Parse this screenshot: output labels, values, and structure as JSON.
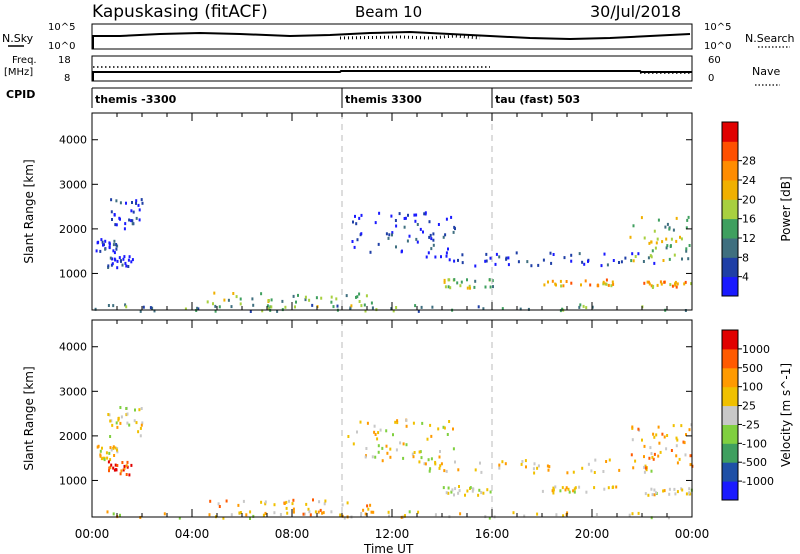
{
  "header": {
    "site": "Kapuskasing (fitACF)",
    "beam": "Beam 10",
    "date": "30/Jul/2018"
  },
  "strip_noise": {
    "left_label": "N.Sky",
    "right_label": "N.Search",
    "left_ticks": [
      "10^5",
      "10^0"
    ],
    "right_ticks": [
      "10^5",
      "10^0"
    ]
  },
  "strip_freq": {
    "left_label": "Freq.",
    "left_unit": "[MHz]",
    "right_label": "Nave",
    "left_ticks": [
      "18",
      "8"
    ],
    "right_ticks": [
      "60",
      "0"
    ]
  },
  "cpid": {
    "label": "CPID",
    "segments": [
      {
        "name": "themis -3300",
        "start": 0,
        "end": 10
      },
      {
        "name": "themis 3300",
        "start": 10,
        "end": 16
      },
      {
        "name": "tau (fast) 503",
        "start": 16,
        "end": 24
      }
    ]
  },
  "colors": {
    "power": [
      "#1a1aff",
      "#1f3fa6",
      "#3f6f7f",
      "#3f9f5f",
      "#a8d040",
      "#f0b000",
      "#ff8c00",
      "#ff5000",
      "#e00000"
    ],
    "velocity": [
      "#e00000",
      "#ff5a00",
      "#ff9a00",
      "#f0c000",
      "#c8c8c8",
      "#80d040",
      "#3f9f5f",
      "#1f50a6",
      "#1a1aff"
    ]
  },
  "chart_data": [
    {
      "type": "heatmap",
      "name": "power",
      "ylabel": "Slant Range [km]",
      "xlabel": "",
      "x_ticks": [
        "00:00",
        "04:00",
        "08:00",
        "12:00",
        "16:00",
        "20:00",
        "00:00"
      ],
      "x_range_hours": [
        0,
        24
      ],
      "y_ticks": [
        1000,
        2000,
        3000,
        4000
      ],
      "ylim": [
        180,
        4600
      ],
      "colorbar": {
        "label": "Power [dB]",
        "ticks": [
          "4",
          "8",
          "12",
          "16",
          "20",
          "24",
          "28"
        ],
        "range": [
          0,
          30
        ]
      },
      "boundaries_hours": [
        10,
        16
      ],
      "regions": [
        {
          "t": [
            0.1,
            1.0
          ],
          "r": [
            1500,
            1800
          ],
          "level": 1
        },
        {
          "t": [
            0.6,
            2.0
          ],
          "r": [
            2000,
            2700
          ],
          "level": 1
        },
        {
          "t": [
            0.6,
            1.6
          ],
          "r": [
            1150,
            1450
          ],
          "level": 1
        },
        {
          "t": [
            0.0,
            24.0
          ],
          "r": [
            180,
            330
          ],
          "level": 3
        },
        {
          "t": [
            4.5,
            11.5
          ],
          "r": [
            250,
            600
          ],
          "level": 4
        },
        {
          "t": [
            10.2,
            14.5
          ],
          "r": [
            1400,
            2400
          ],
          "level": 1
        },
        {
          "t": [
            13.0,
            22.5
          ],
          "r": [
            1200,
            1500
          ],
          "level": 1
        },
        {
          "t": [
            14.0,
            16.0
          ],
          "r": [
            700,
            900
          ],
          "level": 4
        },
        {
          "t": [
            17.8,
            21.0
          ],
          "r": [
            750,
            900
          ],
          "level": 6
        },
        {
          "t": [
            22.0,
            24.0
          ],
          "r": [
            700,
            850
          ],
          "level": 6
        },
        {
          "t": [
            21.5,
            24.0
          ],
          "r": [
            1300,
            2300
          ],
          "level": 4
        }
      ]
    },
    {
      "type": "heatmap",
      "name": "velocity",
      "ylabel": "Slant Range [km]",
      "xlabel": "Time UT",
      "x_ticks": [
        "00:00",
        "04:00",
        "08:00",
        "12:00",
        "16:00",
        "20:00",
        "00:00"
      ],
      "x_range_hours": [
        0,
        24
      ],
      "y_ticks": [
        1000,
        2000,
        3000,
        4000
      ],
      "ylim": [
        180,
        4600
      ],
      "colorbar": {
        "label": "Velocity [m s^-1]",
        "ticks": [
          "1000",
          "500",
          "100",
          "25",
          "-25",
          "-100",
          "-500",
          "-1000"
        ]
      },
      "boundaries_hours": [
        10,
        16
      ],
      "regions": [
        {
          "t": [
            0.1,
            1.0
          ],
          "r": [
            1500,
            1800
          ],
          "level": 4
        },
        {
          "t": [
            0.6,
            2.0
          ],
          "r": [
            2000,
            2700
          ],
          "level": 4
        },
        {
          "t": [
            0.6,
            1.6
          ],
          "r": [
            1150,
            1450
          ],
          "level": 1
        },
        {
          "t": [
            0.0,
            24.0
          ],
          "r": [
            180,
            330
          ],
          "level": 4
        },
        {
          "t": [
            4.5,
            11.5
          ],
          "r": [
            250,
            600
          ],
          "level": 3
        },
        {
          "t": [
            10.2,
            14.5
          ],
          "r": [
            1400,
            2400
          ],
          "level": 4
        },
        {
          "t": [
            13.0,
            22.5
          ],
          "r": [
            1200,
            1500
          ],
          "level": 4
        },
        {
          "t": [
            14.0,
            16.0
          ],
          "r": [
            700,
            900
          ],
          "level": 4
        },
        {
          "t": [
            17.8,
            21.0
          ],
          "r": [
            750,
            900
          ],
          "level": 4
        },
        {
          "t": [
            22.0,
            24.0
          ],
          "r": [
            700,
            850
          ],
          "level": 4
        },
        {
          "t": [
            21.5,
            24.0
          ],
          "r": [
            1300,
            2300
          ],
          "level": 3
        }
      ]
    }
  ]
}
